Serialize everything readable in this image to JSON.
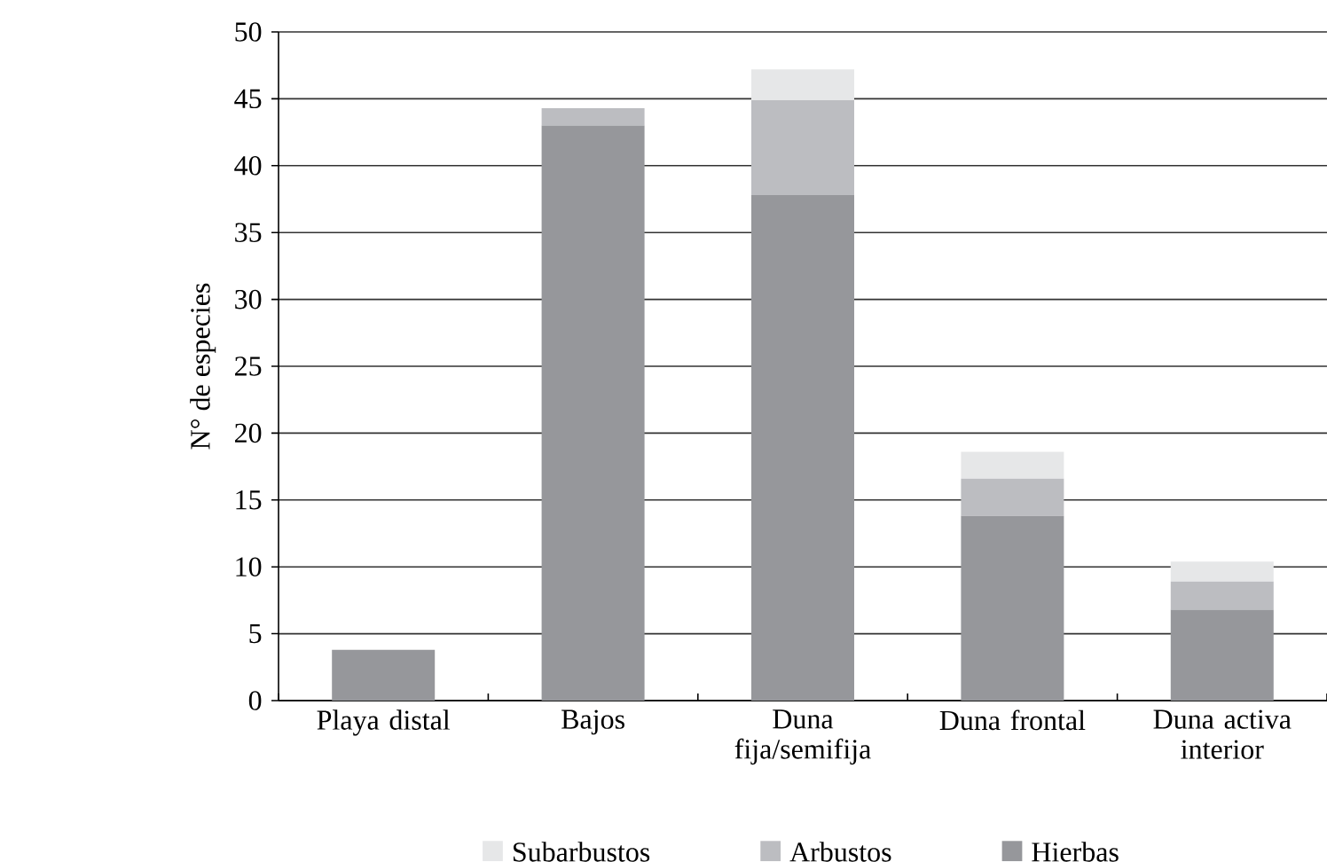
{
  "chart_data": {
    "type": "bar",
    "stacked": true,
    "ylabel": "N° de especies",
    "categories": [
      "Playa distal",
      "Bajos",
      "Duna fija/semifija",
      "Duna frontal",
      "Duna activa interior"
    ],
    "series": [
      {
        "name": "Hierbas",
        "color": "#96979b",
        "values": [
          3.8,
          43,
          37.8,
          13.8,
          6.8
        ]
      },
      {
        "name": "Arbustos",
        "color": "#bcbdc1",
        "values": [
          null,
          1.3,
          7.1,
          2.8,
          2.1
        ]
      },
      {
        "name": "Subarbustos",
        "color": "#e6e7e8",
        "values": [
          null,
          null,
          2.3,
          2.0,
          1.5
        ]
      }
    ],
    "ylim": [
      0,
      50
    ],
    "yticks": [
      0,
      5,
      10,
      15,
      20,
      25,
      30,
      35,
      40,
      45,
      50
    ],
    "grid": "y",
    "legend": "bottom"
  }
}
